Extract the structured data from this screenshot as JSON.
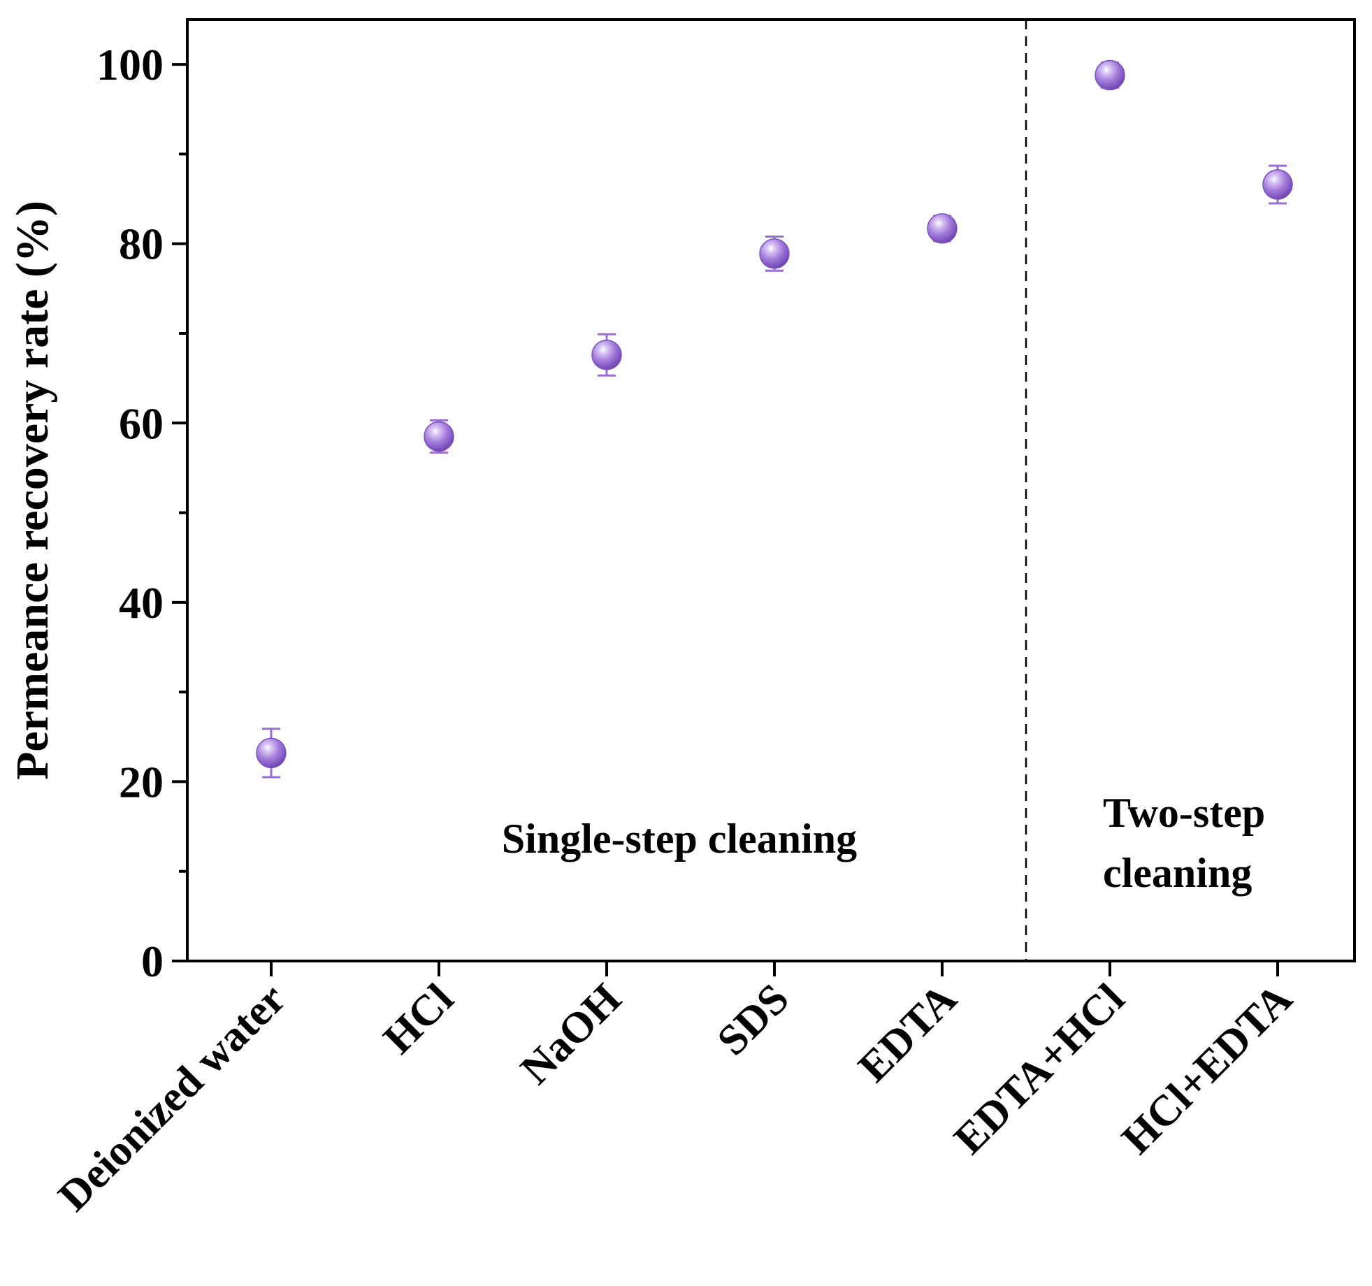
{
  "chart_data": {
    "type": "scatter",
    "title": "",
    "xlabel": "",
    "ylabel": "Permeance recovery rate (%)",
    "ylim": [
      0,
      105
    ],
    "yticks": [
      0,
      20,
      40,
      60,
      80,
      100
    ],
    "yticks_minor": [
      10,
      30,
      50,
      70,
      90
    ],
    "categories": [
      "Deionized water",
      "HCl",
      "NaOH",
      "SDS",
      "EDTA",
      "EDTA+HCl",
      "HCl+EDTA"
    ],
    "values": [
      23.2,
      58.5,
      67.6,
      78.9,
      81.7,
      98.8,
      86.6
    ],
    "errors": [
      2.7,
      1.8,
      2.3,
      1.9,
      1.4,
      1.4,
      2.1
    ],
    "marker_color": "#9b6dd6",
    "separator_between": [
      "EDTA",
      "EDTA+HCl"
    ],
    "annotations": [
      {
        "text": "Single-step cleaning"
      },
      {
        "text": "Two-step\ncleaning"
      }
    ],
    "grid": false,
    "legend": "none"
  }
}
